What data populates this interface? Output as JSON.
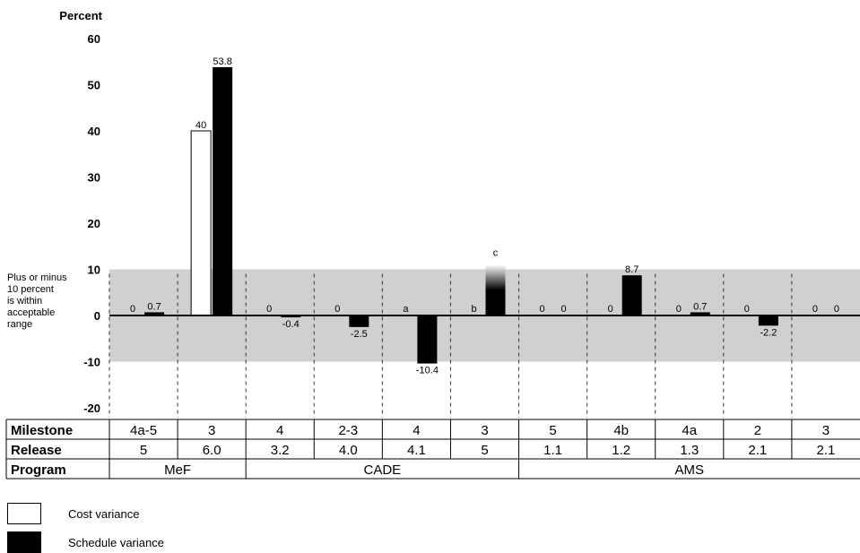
{
  "chart_data": {
    "type": "bar",
    "ylabel": "Percent",
    "ylim": [
      -20,
      60
    ],
    "yticks": [
      60,
      50,
      40,
      30,
      20,
      10,
      0,
      -10,
      -20
    ],
    "band": {
      "range": [
        -10,
        10
      ],
      "note_lines": [
        "Plus or minus",
        "10 percent",
        "is within",
        "acceptable",
        "range"
      ]
    },
    "categories": [
      {
        "milestone": "4a-5",
        "release": "5",
        "cost": 0,
        "schedule": 0.7,
        "cost_label": "0",
        "schedule_label": "0.7"
      },
      {
        "milestone": "3",
        "release": "6.0",
        "cost": 40,
        "schedule": 53.8,
        "cost_label": "40",
        "schedule_label": "53.8"
      },
      {
        "milestone": "4",
        "release": "3.2",
        "cost": 0,
        "schedule": -0.4,
        "cost_label": "0",
        "schedule_label": "-0.4"
      },
      {
        "milestone": "2-3",
        "release": "4.0",
        "cost": 0,
        "schedule": -2.5,
        "cost_label": "0",
        "schedule_label": "-2.5"
      },
      {
        "milestone": "4",
        "release": "4.1",
        "cost": null,
        "schedule": -10.4,
        "cost_label": "a",
        "schedule_label": "-10.4"
      },
      {
        "milestone": "3",
        "release": "5",
        "cost": null,
        "schedule": 11,
        "cost_label": "b",
        "schedule_label": "c",
        "schedule_fade": true
      },
      {
        "milestone": "5",
        "release": "1.1",
        "cost": 0,
        "schedule": 0,
        "cost_label": "0",
        "schedule_label": "0"
      },
      {
        "milestone": "4b",
        "release": "1.2",
        "cost": 0,
        "schedule": 8.7,
        "cost_label": "0",
        "schedule_label": "8.7"
      },
      {
        "milestone": "4a",
        "release": "1.3",
        "cost": 0,
        "schedule": 0.7,
        "cost_label": "0",
        "schedule_label": "0.7"
      },
      {
        "milestone": "2",
        "release": "2.1",
        "cost": 0,
        "schedule": -2.2,
        "cost_label": "0",
        "schedule_label": "-2.2"
      },
      {
        "milestone": "3",
        "release": "2.1",
        "cost": 0,
        "schedule": 0,
        "cost_label": "0",
        "schedule_label": "0"
      }
    ],
    "programs": [
      {
        "name": "MeF",
        "span": 2
      },
      {
        "name": "CADE",
        "span": 4
      },
      {
        "name": "AMS",
        "span": 5
      }
    ],
    "row_headers": {
      "milestone": "Milestone",
      "release": "Release",
      "program": "Program"
    },
    "series": [
      {
        "name": "Cost variance",
        "color": "#ffffff"
      },
      {
        "name": "Schedule variance",
        "color": "#000000"
      }
    ],
    "band_color": "#d0d0d0"
  }
}
